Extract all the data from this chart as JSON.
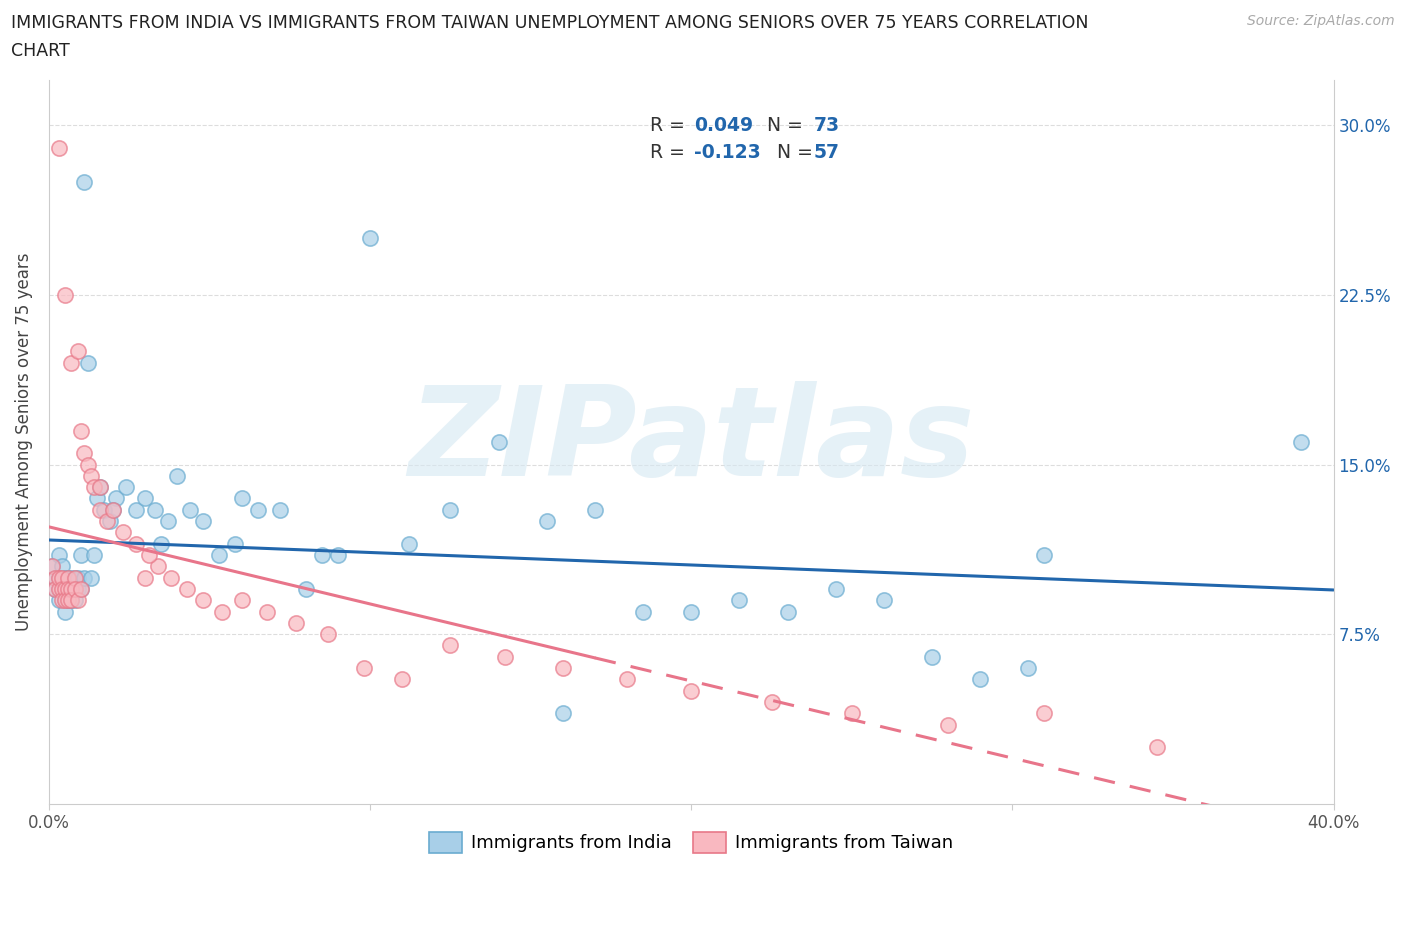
{
  "title_line1": "IMMIGRANTS FROM INDIA VS IMMIGRANTS FROM TAIWAN UNEMPLOYMENT AMONG SENIORS OVER 75 YEARS CORRELATION",
  "title_line2": "CHART",
  "source_text": "Source: ZipAtlas.com",
  "ylabel": "Unemployment Among Seniors over 75 years",
  "xlabel_india": "Immigrants from India",
  "xlabel_taiwan": "Immigrants from Taiwan",
  "xlim": [
    0.0,
    0.4
  ],
  "ylim": [
    0.0,
    0.32
  ],
  "india_color": "#a8cfe8",
  "india_edge_color": "#6aacd0",
  "taiwan_color": "#f9b8c0",
  "taiwan_edge_color": "#e87888",
  "india_line_color": "#2166ac",
  "taiwan_line_color": "#e8758a",
  "legend_text_color": "#2166ac",
  "legend_india_R": "0.049",
  "legend_india_N": "73",
  "legend_taiwan_R": "-0.123",
  "legend_taiwan_N": "57",
  "watermark": "ZIPatlas",
  "right_ytick_color": "#2166ac",
  "right_ytick_labels": [
    "",
    "7.5%",
    "15.0%",
    "22.5%",
    "30.0%"
  ],
  "ytick_positions": [
    0.0,
    0.075,
    0.15,
    0.225,
    0.3
  ],
  "xtick_positions": [
    0.0,
    0.1,
    0.2,
    0.3,
    0.4
  ],
  "xtick_labels": [
    "0.0%",
    "",
    "",
    "",
    "40.0%"
  ],
  "india_x": [
    0.001,
    0.002,
    0.002,
    0.003,
    0.003,
    0.003,
    0.003,
    0.004,
    0.004,
    0.004,
    0.005,
    0.005,
    0.005,
    0.005,
    0.006,
    0.006,
    0.006,
    0.007,
    0.007,
    0.007,
    0.008,
    0.008,
    0.008,
    0.009,
    0.009,
    0.01,
    0.01,
    0.011,
    0.011,
    0.012,
    0.013,
    0.014,
    0.015,
    0.016,
    0.017,
    0.019,
    0.021,
    0.024,
    0.027,
    0.03,
    0.033,
    0.037,
    0.04,
    0.044,
    0.048,
    0.053,
    0.058,
    0.065,
    0.072,
    0.08,
    0.09,
    0.1,
    0.112,
    0.125,
    0.14,
    0.155,
    0.17,
    0.185,
    0.2,
    0.215,
    0.23,
    0.245,
    0.26,
    0.275,
    0.29,
    0.305,
    0.02,
    0.035,
    0.06,
    0.085,
    0.31,
    0.39,
    0.16
  ],
  "india_y": [
    0.105,
    0.1,
    0.095,
    0.11,
    0.095,
    0.09,
    0.1,
    0.095,
    0.1,
    0.105,
    0.09,
    0.095,
    0.1,
    0.085,
    0.1,
    0.095,
    0.09,
    0.095,
    0.1,
    0.09,
    0.095,
    0.1,
    0.09,
    0.1,
    0.095,
    0.11,
    0.095,
    0.275,
    0.1,
    0.195,
    0.1,
    0.11,
    0.135,
    0.14,
    0.13,
    0.125,
    0.135,
    0.14,
    0.13,
    0.135,
    0.13,
    0.125,
    0.145,
    0.13,
    0.125,
    0.11,
    0.115,
    0.13,
    0.13,
    0.095,
    0.11,
    0.25,
    0.115,
    0.13,
    0.16,
    0.125,
    0.13,
    0.085,
    0.085,
    0.09,
    0.085,
    0.095,
    0.09,
    0.065,
    0.055,
    0.06,
    0.13,
    0.115,
    0.135,
    0.11,
    0.11,
    0.16,
    0.04
  ],
  "taiwan_x": [
    0.001,
    0.002,
    0.002,
    0.003,
    0.003,
    0.003,
    0.004,
    0.004,
    0.004,
    0.005,
    0.005,
    0.005,
    0.006,
    0.006,
    0.006,
    0.007,
    0.007,
    0.007,
    0.008,
    0.008,
    0.009,
    0.009,
    0.01,
    0.01,
    0.011,
    0.012,
    0.013,
    0.014,
    0.016,
    0.018,
    0.02,
    0.023,
    0.027,
    0.03,
    0.034,
    0.038,
    0.043,
    0.048,
    0.054,
    0.06,
    0.068,
    0.077,
    0.087,
    0.098,
    0.11,
    0.125,
    0.142,
    0.16,
    0.18,
    0.2,
    0.225,
    0.25,
    0.28,
    0.31,
    0.345,
    0.016,
    0.031
  ],
  "taiwan_y": [
    0.105,
    0.1,
    0.095,
    0.29,
    0.095,
    0.1,
    0.1,
    0.095,
    0.09,
    0.225,
    0.095,
    0.09,
    0.1,
    0.095,
    0.09,
    0.195,
    0.095,
    0.09,
    0.1,
    0.095,
    0.2,
    0.09,
    0.165,
    0.095,
    0.155,
    0.15,
    0.145,
    0.14,
    0.13,
    0.125,
    0.13,
    0.12,
    0.115,
    0.1,
    0.105,
    0.1,
    0.095,
    0.09,
    0.085,
    0.09,
    0.085,
    0.08,
    0.075,
    0.06,
    0.055,
    0.07,
    0.065,
    0.06,
    0.055,
    0.05,
    0.045,
    0.04,
    0.035,
    0.04,
    0.025,
    0.14,
    0.11
  ]
}
